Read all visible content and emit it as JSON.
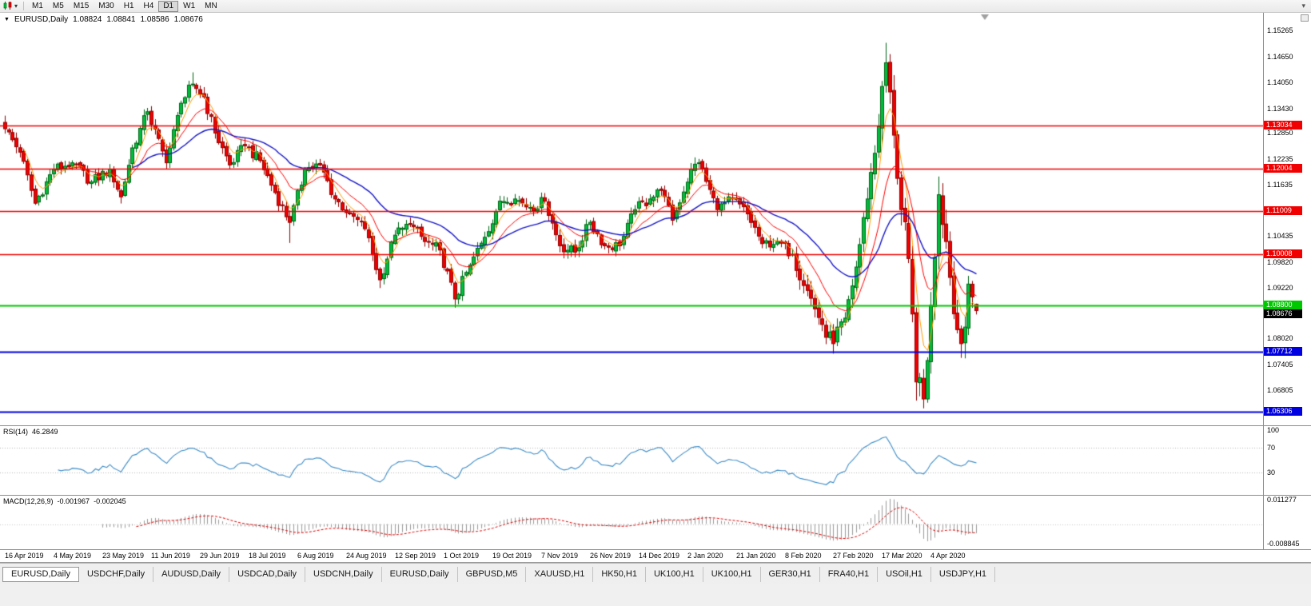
{
  "toolbar": {
    "timeframes": [
      "M1",
      "M5",
      "M15",
      "M30",
      "H1",
      "H4",
      "D1",
      "W1",
      "MN"
    ],
    "active_timeframe": "D1"
  },
  "chart": {
    "title": {
      "symbol": "EURUSD,Daily",
      "open": "1.08824",
      "high": "1.08841",
      "low": "1.08586",
      "close": "1.08676"
    },
    "axis": {
      "price_top": 1.156,
      "price_bottom": 1.0615,
      "ticks": [
        "1.15265",
        "1.14650",
        "1.14050",
        "1.13430",
        "1.12850",
        "1.12235",
        "1.11635",
        "1.10435",
        "1.09820",
        "1.09220",
        "1.08020",
        "1.07405",
        "1.06805"
      ]
    },
    "hlines": [
      {
        "price": 1.13034,
        "label": "1.13034",
        "color": "#F00000",
        "width": 1.3
      },
      {
        "price": 1.12004,
        "label": "1.12004",
        "color": "#F00000",
        "width": 1.3
      },
      {
        "price": 1.11009,
        "label": "1.11009",
        "color": "#F00000",
        "width": 1.3
      },
      {
        "price": 1.10008,
        "label": "1.10008",
        "color": "#F00000",
        "width": 1.3
      },
      {
        "price": 1.088,
        "label": "1.08800",
        "color": "#00C800",
        "width": 2
      },
      {
        "price": 1.07712,
        "label": "1.07712",
        "color": "#0000E0",
        "width": 2
      },
      {
        "price": 1.06306,
        "label": "1.06306",
        "color": "#0000E0",
        "width": 2
      }
    ],
    "current_price": {
      "value": 1.08676,
      "label": "1.08676",
      "bg": "#000000"
    },
    "candles": {
      "count": 260,
      "clamp_high": 1.1497,
      "clamp_low": 1.0638,
      "anchors": [
        [
          0,
          1.1295
        ],
        [
          4,
          1.124
        ],
        [
          8,
          1.112
        ],
        [
          13,
          1.12
        ],
        [
          18,
          1.1215
        ],
        [
          23,
          1.117
        ],
        [
          28,
          1.12
        ],
        [
          31,
          1.1135
        ],
        [
          34,
          1.125
        ],
        [
          38,
          1.1335
        ],
        [
          43,
          1.1215
        ],
        [
          47,
          1.1355
        ],
        [
          50,
          1.14
        ],
        [
          53,
          1.137
        ],
        [
          56,
          1.1285
        ],
        [
          60,
          1.121
        ],
        [
          64,
          1.1255
        ],
        [
          68,
          1.122
        ],
        [
          72,
          1.1145
        ],
        [
          76,
          1.1075
        ],
        [
          80,
          1.12
        ],
        [
          84,
          1.121
        ],
        [
          88,
          1.113
        ],
        [
          92,
          1.1095
        ],
        [
          96,
          1.106
        ],
        [
          100,
          1.094
        ],
        [
          104,
          1.1045
        ],
        [
          108,
          1.107
        ],
        [
          112,
          1.103
        ],
        [
          116,
          1.101
        ],
        [
          120,
          1.0895
        ],
        [
          124,
          1.0975
        ],
        [
          128,
          1.104
        ],
        [
          132,
          1.1125
        ],
        [
          136,
          1.113
        ],
        [
          140,
          1.111
        ],
        [
          144,
          1.1125
        ],
        [
          148,
          1.102
        ],
        [
          152,
          1.1005
        ],
        [
          156,
          1.1075
        ],
        [
          160,
          1.102
        ],
        [
          164,
          1.102
        ],
        [
          168,
          1.1105
        ],
        [
          172,
          1.113
        ],
        [
          175,
          1.115
        ],
        [
          178,
          1.108
        ],
        [
          183,
          1.12
        ],
        [
          185,
          1.1215
        ],
        [
          190,
          1.1105
        ],
        [
          194,
          1.113
        ],
        [
          198,
          1.1095
        ],
        [
          202,
          1.1025
        ],
        [
          206,
          1.103
        ],
        [
          210,
          1.1
        ],
        [
          214,
          1.0915
        ],
        [
          218,
          1.0835
        ],
        [
          221,
          1.079
        ],
        [
          224,
          1.085
        ],
        [
          227,
          1.097
        ],
        [
          230,
          1.113
        ],
        [
          233,
          1.13
        ],
        [
          235,
          1.145
        ],
        [
          237,
          1.128
        ],
        [
          239,
          1.1105
        ],
        [
          241,
          1.099
        ],
        [
          243,
          1.07
        ],
        [
          245,
          1.066
        ],
        [
          247,
          1.088
        ],
        [
          249,
          1.114
        ],
        [
          251,
          1.103
        ],
        [
          253,
          1.086
        ],
        [
          255,
          1.079
        ],
        [
          257,
          1.093
        ],
        [
          258,
          1.09
        ],
        [
          259,
          1.0868
        ]
      ],
      "wick_boosts": {
        "50": 0.0012,
        "76": -0.0045,
        "100": -0.0012,
        "120": -0.0012,
        "221": -0.001,
        "235": 0.0046,
        "243": -0.002,
        "245": -0.002,
        "249": 0.001
      },
      "last_ohlc": [
        1.08824,
        1.08841,
        1.08586,
        1.08676
      ]
    },
    "ma": [
      {
        "period": 5,
        "color": "#FF9C00",
        "width": 1
      },
      {
        "period": 13,
        "color": "#FF0000",
        "width": 1
      },
      {
        "period": 34,
        "color": "#1414C8",
        "width": 1.4
      }
    ],
    "colors": {
      "up": "#00BE3C",
      "up_border": "#006414",
      "down": "#F00000",
      "down_border": "#900000",
      "bg": "#FFFFFF"
    }
  },
  "rsi": {
    "name": "RSI(14)",
    "value": "46.2849",
    "period": 14,
    "levels": [
      70,
      30
    ],
    "scale_labels": [
      "100",
      "70",
      "30"
    ],
    "color": "#3C8CC8"
  },
  "macd": {
    "name": "MACD(12,26,9)",
    "main_value": "-0.001967",
    "signal_value": "-0.002045",
    "fast": 12,
    "slow": 26,
    "signal": 9,
    "scale_top": 0.011277,
    "scale_bottom": -0.008845,
    "scale_labels": [
      "0.011277",
      "-0.008845"
    ],
    "hist_color": "#9C9C9C",
    "signal_color": "#E00000"
  },
  "x_axis": {
    "candles_per_label": 13,
    "dates": [
      "16 Apr 2019",
      "4 May 2019",
      "23 May 2019",
      "11 Jun 2019",
      "29 Jun 2019",
      "18 Jul 2019",
      "6 Aug 2019",
      "24 Aug 2019",
      "12 Sep 2019",
      "1 Oct 2019",
      "19 Oct 2019",
      "7 Nov 2019",
      "26 Nov 2019",
      "14 Dec 2019",
      "2 Jan 2020",
      "21 Jan 2020",
      "8 Feb 2020",
      "27 Feb 2020",
      "17 Mar 2020",
      "4 Apr 2020"
    ]
  },
  "tabs": {
    "items": [
      {
        "label": "EURUSD,Daily",
        "active": true
      },
      {
        "label": "USDCHF,Daily",
        "active": false
      },
      {
        "label": "AUDUSD,Daily",
        "active": false
      },
      {
        "label": "USDCAD,Daily",
        "active": false
      },
      {
        "label": "USDCNH,Daily",
        "active": false
      },
      {
        "label": "EURUSD,Daily",
        "active": false
      },
      {
        "label": "GBPUSD,M5",
        "active": false
      },
      {
        "label": "XAUUSD,H1",
        "active": false
      },
      {
        "label": "HK50,H1",
        "active": false
      },
      {
        "label": "UK100,H1",
        "active": false
      },
      {
        "label": "UK100,H1",
        "active": false
      },
      {
        "label": "GER30,H1",
        "active": false
      },
      {
        "label": "FRA40,H1",
        "active": false
      },
      {
        "label": "USOil,H1",
        "active": false
      },
      {
        "label": "USDJPY,H1",
        "active": false
      }
    ]
  },
  "chart_data": {
    "type": "candlestick",
    "symbol": "EURUSD",
    "timeframe": "Daily",
    "visible_price_range": [
      1.0615,
      1.156
    ],
    "last_ohlc": {
      "open": 1.08824,
      "high": 1.08841,
      "low": 1.08586,
      "close": 1.08676
    },
    "key_points": [
      [
        "16 Apr 2019",
        1.1295
      ],
      [
        "25 Jun 2019",
        1.14
      ],
      [
        "1 Oct 2019",
        1.0895
      ],
      [
        "31 Dec 2019",
        1.1215
      ],
      [
        "20 Feb 2020",
        1.079
      ],
      [
        "9 Mar 2020",
        1.1495
      ],
      [
        "23 Mar 2020",
        1.0636
      ],
      [
        "current",
        1.08676
      ]
    ],
    "horizontal_levels": {
      "red_resistance": [
        1.13034,
        1.12004,
        1.11009,
        1.10008
      ],
      "green_support": [
        1.088
      ],
      "blue_support": [
        1.07712,
        1.06306
      ]
    },
    "indicators": [
      {
        "name": "RSI(14)",
        "value": 46.2849
      },
      {
        "name": "MACD(12,26,9)",
        "main": -0.001967,
        "signal": -0.002045
      }
    ]
  }
}
